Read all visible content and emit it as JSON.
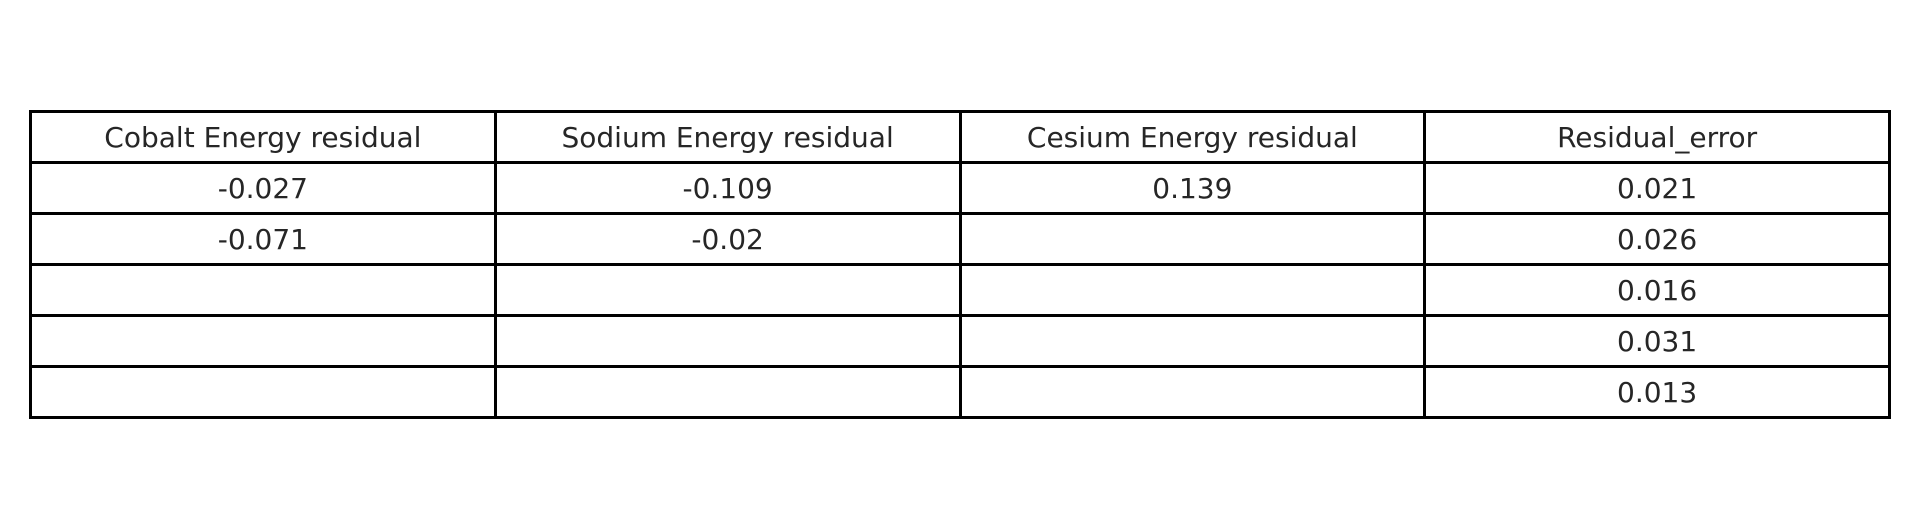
{
  "chart_data": {
    "type": "table",
    "columns": [
      "Cobalt Energy residual",
      "Sodium Energy residual",
      "Cesium Energy residual",
      "Residual_error"
    ],
    "rows": [
      [
        "-0.027",
        "-0.109",
        "0.139",
        "0.021"
      ],
      [
        "-0.071",
        "-0.02",
        "",
        "0.026"
      ],
      [
        "",
        "",
        "",
        "0.016"
      ],
      [
        "",
        "",
        "",
        "0.031"
      ],
      [
        "",
        "",
        "",
        "0.013"
      ]
    ]
  },
  "colors": {
    "border": "#000000",
    "text": "#262626",
    "background": "#ffffff"
  }
}
